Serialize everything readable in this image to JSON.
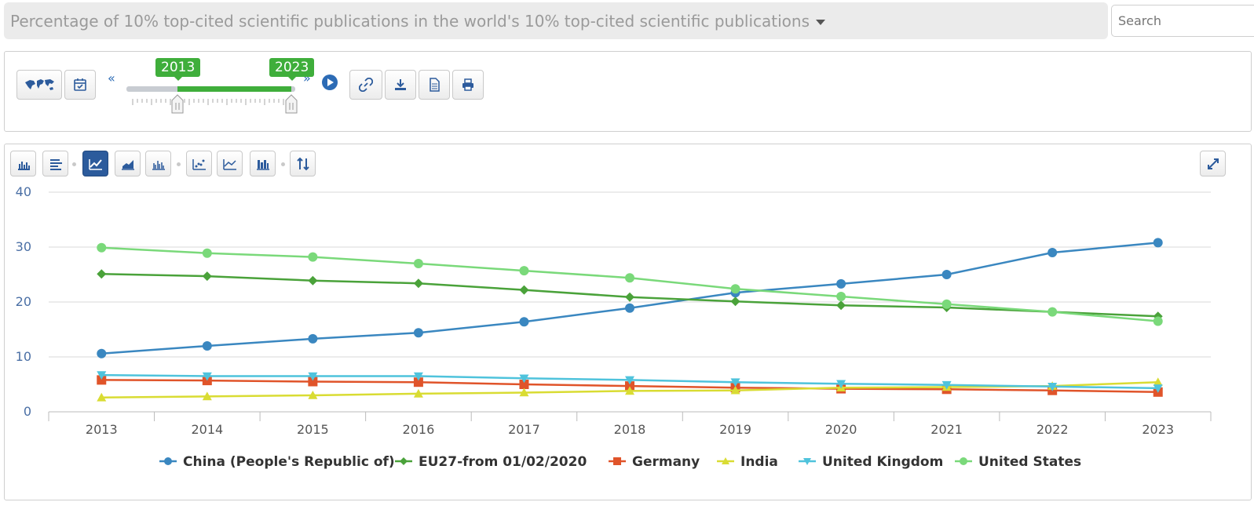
{
  "header": {
    "title": "Percentage of 10% top-cited scientific publications in the world's 10% top-cited scientific publications",
    "search_placeholder": "Search"
  },
  "controls": {
    "start_year": "2013",
    "end_year": "2023",
    "rewind_label": "«",
    "forward_label": "»",
    "icons": [
      "world-map-icon",
      "calendar-icon",
      "play-icon",
      "link-icon",
      "download-icon",
      "document-icon",
      "print-icon"
    ]
  },
  "chart_toolbar": {
    "icons": [
      "bar-chart-icon",
      "horizontal-bar-icon",
      "line-chart-icon",
      "area-chart-icon",
      "column-chart-icon",
      "scatter-chart-icon",
      "multi-line-icon",
      "heatmap-icon",
      "sort-icon",
      "expand-icon"
    ],
    "active": "line-chart-icon"
  },
  "chart_data": {
    "type": "line",
    "x": [
      "2013",
      "2014",
      "2015",
      "2016",
      "2017",
      "2018",
      "2019",
      "2020",
      "2021",
      "2022",
      "2023"
    ],
    "ylim": [
      0,
      40
    ],
    "yticks": [
      "0",
      "10",
      "20",
      "30",
      "40"
    ],
    "grid": true,
    "legend_position": "bottom",
    "series": [
      {
        "name": "China (People's Republic of)",
        "color": "#3a87c0",
        "marker": "circle",
        "values": [
          10.6,
          12.0,
          13.3,
          14.4,
          16.4,
          18.9,
          21.7,
          23.3,
          25.0,
          29.0,
          30.8
        ]
      },
      {
        "name": "EU27-from 01/02/2020",
        "color": "#4aa23a",
        "marker": "diamond",
        "values": [
          25.1,
          24.7,
          23.9,
          23.4,
          22.2,
          20.9,
          20.1,
          19.4,
          19.0,
          18.2,
          17.4
        ]
      },
      {
        "name": "Germany",
        "color": "#e0542a",
        "marker": "square",
        "values": [
          5.8,
          5.7,
          5.5,
          5.4,
          5.0,
          4.7,
          4.4,
          4.2,
          4.1,
          3.9,
          3.6
        ]
      },
      {
        "name": "India",
        "color": "#d9dc33",
        "marker": "triangle-up",
        "values": [
          2.6,
          2.8,
          3.0,
          3.3,
          3.5,
          3.8,
          3.9,
          4.4,
          4.5,
          4.7,
          5.4
        ]
      },
      {
        "name": "United Kingdom",
        "color": "#4fc3dc",
        "marker": "triangle-down",
        "values": [
          6.7,
          6.5,
          6.5,
          6.5,
          6.1,
          5.8,
          5.4,
          5.1,
          4.9,
          4.6,
          4.3
        ]
      },
      {
        "name": "United States",
        "color": "#7ad97a",
        "marker": "circle",
        "values": [
          29.9,
          28.9,
          28.2,
          27.0,
          25.7,
          24.4,
          22.4,
          21.0,
          19.6,
          18.2,
          16.5
        ]
      }
    ]
  }
}
